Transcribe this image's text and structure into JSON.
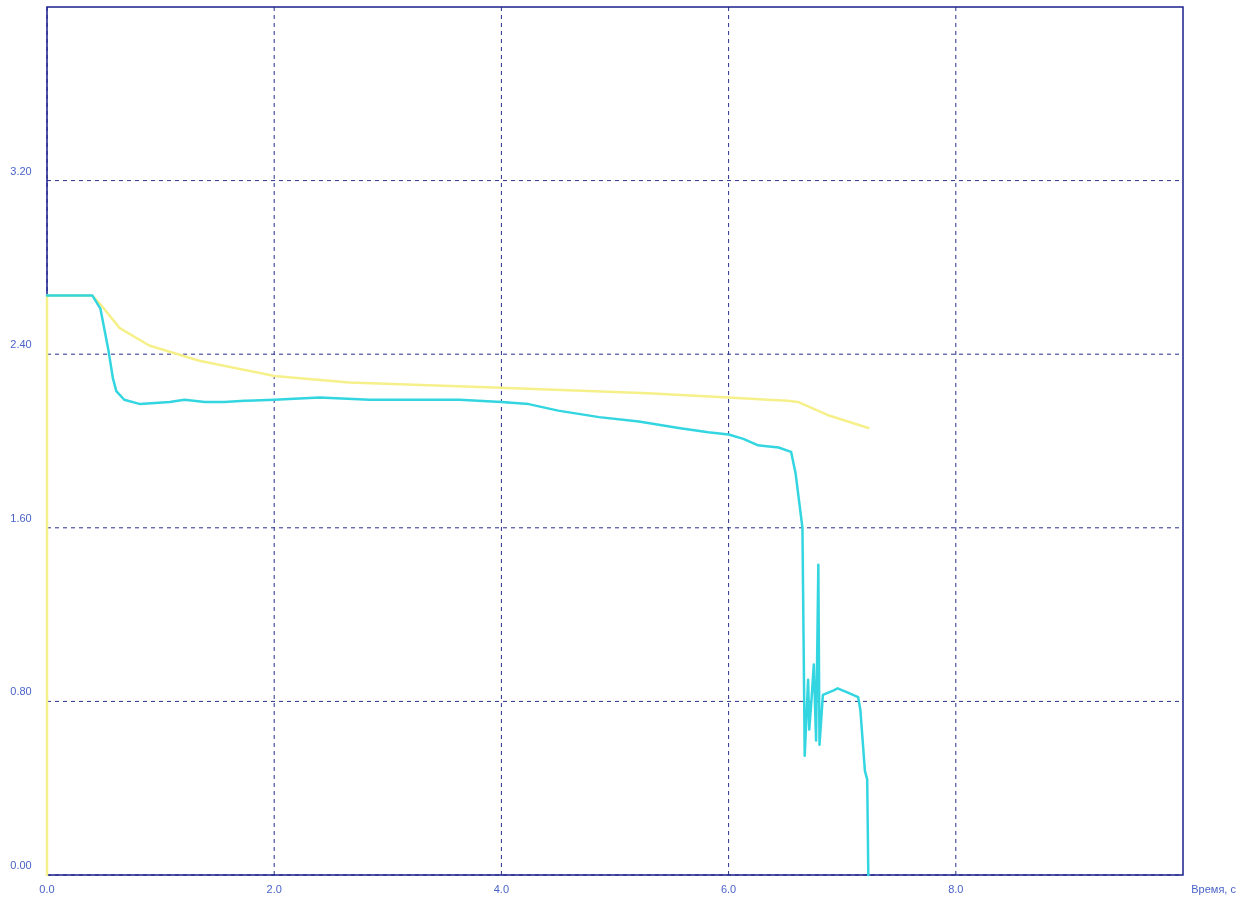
{
  "chart_data": {
    "type": "line",
    "xlabel": "Время, с",
    "xlim": [
      0,
      10
    ],
    "ylim": [
      0,
      4
    ],
    "xticks": [
      {
        "value": 0,
        "label": "0.0"
      },
      {
        "value": 2,
        "label": "2.0"
      },
      {
        "value": 4,
        "label": "4.0"
      },
      {
        "value": 6,
        "label": "6.0"
      },
      {
        "value": 8,
        "label": "8.0"
      }
    ],
    "yticks": [
      {
        "value": 0,
        "label": "0.00"
      },
      {
        "value": 0.8,
        "label": "0.80"
      },
      {
        "value": 1.6,
        "label": "1.60"
      },
      {
        "value": 2.4,
        "label": "2.40"
      },
      {
        "value": 3.2,
        "label": "3.20"
      }
    ],
    "grid": true,
    "line_style": "solid",
    "series": [
      {
        "color": "#f6f08a",
        "x": [
          0,
          0,
          0.4,
          0.47,
          0.64,
          0.9,
          1.34,
          2.0,
          2.66,
          4.0,
          5.29,
          6.0,
          6.52,
          6.61,
          6.87,
          7.23
        ],
        "values": [
          0,
          2.67,
          2.67,
          2.63,
          2.52,
          2.44,
          2.37,
          2.3,
          2.27,
          2.245,
          2.22,
          2.2,
          2.185,
          2.18,
          2.12,
          2.06
        ]
      },
      {
        "color": "#33d6e0",
        "x": [
          0,
          0.4,
          0.47,
          0.54,
          0.58,
          0.61,
          0.68,
          0.82,
          1.08,
          1.21,
          1.39,
          1.56,
          1.74,
          2.0,
          2.4,
          2.84,
          3.27,
          3.63,
          4.0,
          4.24,
          4.5,
          4.86,
          5.21,
          5.56,
          5.82,
          6.0,
          6.13,
          6.26,
          6.44,
          6.55,
          6.59,
          6.65,
          6.66,
          6.67,
          6.7,
          6.71,
          6.73,
          6.75,
          6.77,
          6.79,
          6.8,
          6.83,
          6.92,
          6.96,
          7.05,
          7.14,
          7.16,
          7.2,
          7.22,
          7.23
        ],
        "values": [
          2.67,
          2.67,
          2.61,
          2.42,
          2.29,
          2.23,
          2.19,
          2.17,
          2.18,
          2.19,
          2.18,
          2.18,
          2.185,
          2.19,
          2.2,
          2.19,
          2.19,
          2.19,
          2.18,
          2.17,
          2.14,
          2.11,
          2.09,
          2.06,
          2.04,
          2.03,
          2.01,
          1.98,
          1.97,
          1.95,
          1.85,
          1.6,
          1.09,
          0.55,
          0.9,
          0.67,
          0.81,
          0.97,
          0.62,
          1.43,
          0.6,
          0.83,
          0.85,
          0.86,
          0.84,
          0.82,
          0.76,
          0.48,
          0.44,
          0
        ]
      }
    ]
  }
}
